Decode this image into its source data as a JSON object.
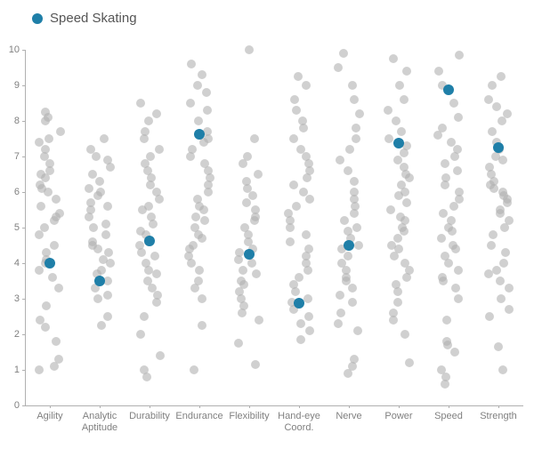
{
  "chart": {
    "type": "strip-scatter",
    "legend_label": "Speed Skating",
    "legend_color": "#1f7fa8",
    "background_color": "#ffffff",
    "axis_color": "#b0b0b0",
    "label_color": "#808080",
    "label_fontsize": 11,
    "legend_fontsize": 15,
    "grid": false,
    "ylim": [
      0,
      10
    ],
    "ytick_step": 1,
    "categories": [
      "Agility",
      "Analytic\nAptitude",
      "Durability",
      "Endurance",
      "Flexibility",
      "Hand-eye\nCoord.",
      "Nerve",
      "Power",
      "Speed",
      "Strength"
    ],
    "bg_marker": {
      "color": "#b0b0b0",
      "opacity": 0.6,
      "radius": 5
    },
    "hl_marker": {
      "color": "#1f7fa8",
      "opacity": 1.0,
      "radius": 6
    },
    "background_points": {
      "Agility": [
        1.0,
        1.1,
        1.3,
        1.8,
        2.2,
        2.4,
        2.8,
        3.3,
        3.6,
        3.8,
        4.0,
        4.1,
        4.3,
        4.5,
        4.8,
        5.0,
        5.2,
        5.3,
        5.4,
        5.6,
        5.8,
        6.0,
        6.1,
        6.2,
        6.4,
        6.5,
        6.6,
        6.8,
        7.0,
        7.2,
        7.4,
        7.5,
        7.7,
        8.0,
        8.1,
        8.25
      ],
      "Analytic Aptitude": [
        2.25,
        2.5,
        3.0,
        3.1,
        3.3,
        3.5,
        3.7,
        3.8,
        4.0,
        4.1,
        4.3,
        4.4,
        4.5,
        4.6,
        4.8,
        5.0,
        5.1,
        5.3,
        5.5,
        5.6,
        5.7,
        5.9,
        6.0,
        6.1,
        6.3,
        6.5,
        6.7,
        6.9,
        7.0,
        7.2,
        7.5
      ],
      "Durability": [
        0.8,
        1.0,
        1.4,
        2.0,
        2.5,
        2.9,
        3.1,
        3.3,
        3.5,
        3.7,
        3.8,
        4.0,
        4.2,
        4.3,
        4.5,
        4.6,
        4.8,
        4.9,
        5.1,
        5.3,
        5.5,
        5.6,
        5.8,
        6.0,
        6.2,
        6.4,
        6.6,
        6.8,
        7.0,
        7.2,
        7.5,
        7.7,
        8.0,
        8.2,
        8.5
      ],
      "Endurance": [
        1.0,
        2.25,
        3.0,
        3.3,
        3.5,
        3.8,
        4.0,
        4.2,
        4.4,
        4.5,
        4.7,
        4.8,
        5.0,
        5.2,
        5.3,
        5.5,
        5.6,
        5.8,
        6.0,
        6.2,
        6.4,
        6.6,
        6.8,
        7.0,
        7.2,
        7.4,
        7.5,
        7.7,
        8.0,
        8.3,
        8.5,
        8.8,
        9.0,
        9.3,
        9.6
      ],
      "Flexibility": [
        1.15,
        1.75,
        2.4,
        2.6,
        2.8,
        3.0,
        3.2,
        3.4,
        3.5,
        3.7,
        3.8,
        4.0,
        4.1,
        4.3,
        4.4,
        4.6,
        4.8,
        5.0,
        5.2,
        5.3,
        5.5,
        5.7,
        5.9,
        6.1,
        6.3,
        6.5,
        6.8,
        7.0,
        7.5,
        10.0
      ],
      "Hand-eye Coord.": [
        1.85,
        2.1,
        2.3,
        2.5,
        2.7,
        2.9,
        3.0,
        3.2,
        3.4,
        3.6,
        3.8,
        4.0,
        4.2,
        4.4,
        4.6,
        4.8,
        5.0,
        5.2,
        5.4,
        5.6,
        5.8,
        6.0,
        6.2,
        6.4,
        6.6,
        6.8,
        7.0,
        7.2,
        7.5,
        7.8,
        8.0,
        8.3,
        8.6,
        9.0,
        9.25
      ],
      "Nerve": [
        0.9,
        1.1,
        1.3,
        2.1,
        2.3,
        2.6,
        2.9,
        3.1,
        3.3,
        3.5,
        3.6,
        3.8,
        4.0,
        4.2,
        4.4,
        4.5,
        4.7,
        4.9,
        5.0,
        5.2,
        5.4,
        5.6,
        5.8,
        6.0,
        6.3,
        6.6,
        6.9,
        7.2,
        7.5,
        7.8,
        8.2,
        8.6,
        9.0,
        9.5,
        9.9
      ],
      "Power": [
        1.2,
        2.0,
        2.4,
        2.6,
        2.9,
        3.2,
        3.4,
        3.6,
        3.8,
        4.0,
        4.2,
        4.4,
        4.5,
        4.7,
        4.9,
        5.0,
        5.2,
        5.3,
        5.5,
        5.7,
        5.9,
        6.0,
        6.2,
        6.4,
        6.5,
        6.7,
        6.9,
        7.1,
        7.3,
        7.5,
        7.7,
        8.0,
        8.3,
        8.6,
        9.0,
        9.4,
        9.75
      ],
      "Speed": [
        0.6,
        0.8,
        1.0,
        1.5,
        1.7,
        1.8,
        2.4,
        3.0,
        3.3,
        3.5,
        3.6,
        3.8,
        4.0,
        4.2,
        4.4,
        4.5,
        4.7,
        4.9,
        5.0,
        5.2,
        5.4,
        5.6,
        5.8,
        6.0,
        6.2,
        6.4,
        6.6,
        6.8,
        7.0,
        7.2,
        7.4,
        7.6,
        7.8,
        8.1,
        8.5,
        9.0,
        9.4,
        9.85
      ],
      "Strength": [
        1.0,
        1.65,
        2.5,
        2.7,
        3.0,
        3.3,
        3.5,
        3.7,
        3.8,
        4.0,
        4.3,
        4.5,
        4.8,
        5.0,
        5.2,
        5.4,
        5.5,
        5.7,
        5.8,
        5.9,
        6.0,
        6.1,
        6.2,
        6.3,
        6.5,
        6.7,
        6.9,
        7.0,
        7.2,
        7.4,
        7.7,
        8.0,
        8.2,
        8.4,
        8.6,
        9.0,
        9.25
      ]
    },
    "highlight_values": {
      "Agility": 4.0,
      "Analytic Aptitude": 3.5,
      "Durability": 4.63,
      "Endurance": 7.63,
      "Flexibility": 4.25,
      "Hand-eye Coord.": 2.88,
      "Nerve": 4.5,
      "Power": 7.38,
      "Speed": 8.88,
      "Strength": 7.25
    }
  }
}
